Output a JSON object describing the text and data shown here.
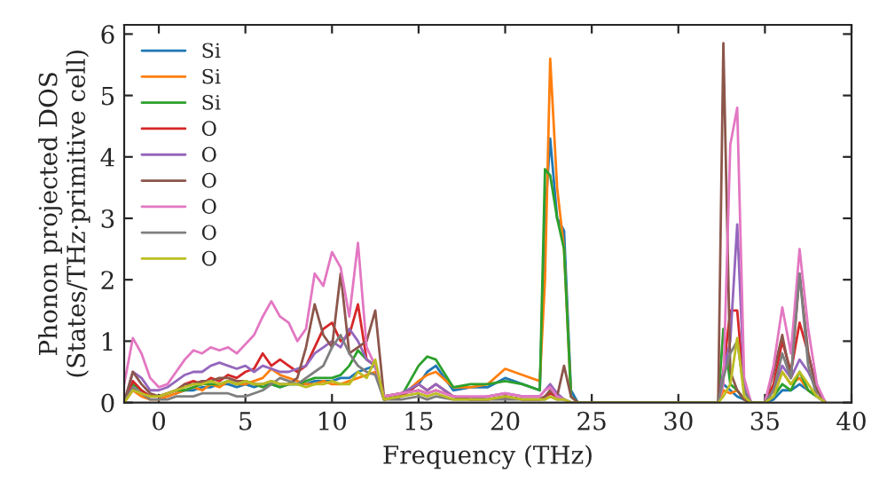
{
  "chart_data": {
    "type": "line",
    "xlabel": "Frequency (THz)",
    "ylabel": "Phonon projected DOS\n(States/THz·primitive cell)",
    "x": [
      -2,
      -1.5,
      -1,
      -0.5,
      0,
      0.5,
      1,
      1.5,
      2,
      2.5,
      3,
      3.5,
      4,
      4.5,
      5,
      5.5,
      6,
      6.5,
      7,
      7.5,
      8,
      8.5,
      9,
      9.5,
      10,
      10.5,
      11,
      11.5,
      12,
      12.5,
      13,
      14,
      15,
      15.5,
      16,
      17,
      18,
      19,
      20,
      21,
      22,
      22.3,
      22.6,
      23,
      23.4,
      23.8,
      24.2,
      25,
      30,
      32.3,
      32.6,
      33,
      33.4,
      33.8,
      34.2,
      35,
      35.5,
      36,
      36.5,
      37,
      37.5,
      38,
      38.5
    ],
    "series": [
      {
        "name": "Si",
        "color": "#1f77b4",
        "values": [
          null,
          null,
          null,
          null,
          null,
          null,
          0.15,
          0.2,
          0.2,
          0.25,
          0.25,
          0.3,
          0.3,
          0.25,
          0.3,
          0.25,
          0.3,
          0.3,
          0.25,
          0.3,
          0.3,
          0.3,
          0.35,
          0.35,
          0.35,
          0.4,
          0.4,
          0.5,
          0.55,
          0.6,
          0.05,
          0.1,
          0.3,
          0.5,
          0.6,
          0.2,
          0.25,
          0.25,
          0.4,
          0.3,
          0.2,
          3.0,
          4.3,
          3.0,
          2.8,
          0.2,
          0,
          0,
          0,
          0,
          0.3,
          0.2,
          0.1,
          0.05,
          0,
          0,
          0.05,
          0.2,
          0.2,
          0.3,
          0.2,
          0.1,
          0
        ]
      },
      {
        "name": "Si",
        "color": "#ff7f0e",
        "values": [
          0,
          0.2,
          0.1,
          0.05,
          0.05,
          0.1,
          0.15,
          0.2,
          0.25,
          0.2,
          0.3,
          0.25,
          0.35,
          0.3,
          0.3,
          0.35,
          0.4,
          0.55,
          0.45,
          0.4,
          0.35,
          0.3,
          0.3,
          0.35,
          0.3,
          0.3,
          0.35,
          0.4,
          0.45,
          0.5,
          0.05,
          0.1,
          0.35,
          0.45,
          0.5,
          0.25,
          0.25,
          0.3,
          0.55,
          0.45,
          0.35,
          2.0,
          5.6,
          3.5,
          2.5,
          0.1,
          0,
          0,
          0,
          0,
          0.2,
          0.15,
          0.2,
          0.05,
          0,
          0,
          0.1,
          0.5,
          0.3,
          0.4,
          0.2,
          0.1,
          0
        ]
      },
      {
        "name": "Si",
        "color": "#2ca02c",
        "values": [
          0,
          0.3,
          0.2,
          0.1,
          0.1,
          0.15,
          0.2,
          0.2,
          0.25,
          0.3,
          0.3,
          0.3,
          0.35,
          0.3,
          0.35,
          0.3,
          0.25,
          0.3,
          0.25,
          0.3,
          0.3,
          0.35,
          0.4,
          0.4,
          0.4,
          0.45,
          0.6,
          0.85,
          0.7,
          0.6,
          0.05,
          0.1,
          0.6,
          0.75,
          0.7,
          0.25,
          0.3,
          0.3,
          0.35,
          0.3,
          0.2,
          3.8,
          3.7,
          3.0,
          2.5,
          0.1,
          0,
          0,
          0,
          0,
          1.2,
          0.3,
          0.2,
          0.05,
          0,
          0,
          0.1,
          0.3,
          0.2,
          0.5,
          0.2,
          0.1,
          0
        ]
      },
      {
        "name": "O",
        "color": "#d62728",
        "values": [
          0,
          0.35,
          0.2,
          0.1,
          0.1,
          0.15,
          0.2,
          0.3,
          0.35,
          0.3,
          0.4,
          0.35,
          0.45,
          0.4,
          0.5,
          0.55,
          0.8,
          0.6,
          0.7,
          0.6,
          0.5,
          0.6,
          0.9,
          1.2,
          1.3,
          1.0,
          1.1,
          1.6,
          0.7,
          0.6,
          0.05,
          0.1,
          0.3,
          0.2,
          0.3,
          0.1,
          0.05,
          0.05,
          0.1,
          0.05,
          0.05,
          0.1,
          0.15,
          0.1,
          0.05,
          0,
          0,
          0,
          0,
          0,
          0.5,
          1.5,
          1.5,
          0.2,
          0,
          0,
          0.3,
          1.0,
          0.5,
          1.3,
          0.8,
          0.2,
          0
        ]
      },
      {
        "name": "O",
        "color": "#9467bd",
        "values": [
          0,
          0.5,
          0.4,
          0.2,
          0.2,
          0.25,
          0.35,
          0.45,
          0.5,
          0.5,
          0.6,
          0.65,
          0.6,
          0.55,
          0.6,
          0.5,
          0.6,
          0.55,
          0.5,
          0.5,
          0.55,
          0.6,
          0.8,
          0.9,
          1.0,
          0.9,
          1.2,
          1.0,
          0.7,
          0.6,
          0.1,
          0.15,
          0.3,
          0.2,
          0.3,
          0.1,
          0.05,
          0.1,
          0.15,
          0.1,
          0.1,
          0.2,
          0.3,
          0.15,
          0.05,
          0,
          0,
          0,
          0,
          0,
          0.5,
          1.0,
          2.9,
          0.3,
          0,
          0,
          0.2,
          0.6,
          0.4,
          0.7,
          0.5,
          0.2,
          0
        ]
      },
      {
        "name": "O",
        "color": "#8c564b",
        "values": [
          0,
          0.5,
          0.3,
          0.15,
          0.1,
          0.15,
          0.2,
          0.3,
          0.3,
          0.35,
          0.35,
          0.4,
          0.4,
          0.35,
          0.35,
          0.3,
          0.3,
          0.35,
          0.3,
          0.3,
          0.4,
          0.9,
          1.6,
          1.1,
          0.9,
          2.1,
          0.8,
          0.9,
          1.0,
          1.5,
          0.1,
          0.15,
          0.2,
          0.15,
          0.2,
          0.1,
          0.05,
          0.05,
          0.1,
          0.05,
          0.05,
          0.1,
          0.2,
          0.1,
          0.6,
          0.1,
          0,
          0,
          0,
          0,
          5.85,
          0.5,
          0.2,
          0.05,
          0,
          0,
          0.5,
          1.1,
          0.4,
          2.1,
          0.8,
          0.2,
          0
        ]
      },
      {
        "name": "O",
        "color": "#e377c2",
        "values": [
          0.3,
          1.05,
          0.8,
          0.4,
          0.25,
          0.3,
          0.5,
          0.7,
          0.85,
          0.8,
          0.9,
          0.85,
          0.9,
          0.8,
          0.95,
          1.1,
          1.4,
          1.65,
          1.4,
          1.3,
          1.0,
          1.2,
          2.1,
          1.9,
          2.45,
          2.2,
          1.4,
          2.6,
          0.9,
          0.6,
          0.1,
          0.15,
          0.2,
          0.15,
          0.2,
          0.1,
          0.1,
          0.1,
          0.15,
          0.1,
          0.1,
          0.2,
          0.25,
          0.1,
          0.05,
          0,
          0,
          0,
          0,
          0,
          0.3,
          4.2,
          4.8,
          0.4,
          0,
          0,
          0.6,
          1.55,
          0.8,
          2.5,
          1.2,
          0.3,
          0
        ]
      },
      {
        "name": "O",
        "color": "#7f7f7f",
        "values": [
          0,
          0.25,
          0.15,
          0.05,
          0.05,
          0.05,
          0.1,
          0.1,
          0.1,
          0.15,
          0.15,
          0.15,
          0.15,
          0.1,
          0.1,
          0.15,
          0.2,
          0.3,
          0.4,
          0.35,
          0.3,
          0.4,
          0.5,
          0.6,
          0.9,
          1.1,
          0.8,
          0.6,
          0.5,
          0.45,
          0.05,
          0.05,
          0.1,
          0.05,
          0.1,
          0.05,
          0.05,
          0.05,
          0.05,
          0.05,
          0.05,
          0.05,
          0.1,
          0.05,
          0.05,
          0,
          0,
          0,
          0,
          0,
          0.4,
          0.8,
          1.0,
          0.2,
          0,
          0,
          0.2,
          0.8,
          0.4,
          2.1,
          0.6,
          0.1,
          0
        ]
      },
      {
        "name": "O",
        "color": "#bcbd22",
        "values": [
          0,
          0.2,
          0.15,
          0.1,
          0.1,
          0.15,
          0.2,
          0.25,
          0.3,
          0.3,
          0.35,
          0.3,
          0.35,
          0.3,
          0.35,
          0.3,
          0.3,
          0.35,
          0.3,
          0.3,
          0.3,
          0.25,
          0.3,
          0.3,
          0.35,
          0.3,
          0.3,
          0.5,
          0.4,
          0.7,
          0.05,
          0.1,
          0.15,
          0.1,
          0.15,
          0.05,
          0.05,
          0.05,
          0.1,
          0.05,
          0.05,
          0.05,
          0.1,
          0.05,
          0.05,
          0,
          0,
          0,
          0,
          0,
          0.1,
          0.3,
          1.05,
          0.1,
          0,
          0,
          0.1,
          0.5,
          0.3,
          0.5,
          0.3,
          0.1,
          0
        ]
      }
    ],
    "xlim": [
      -2,
      40
    ],
    "xticks": [
      0,
      5,
      10,
      15,
      20,
      25,
      30,
      35,
      40
    ],
    "ylim": [
      0,
      6.15
    ],
    "yticks": [
      0,
      1,
      2,
      3,
      4,
      5,
      6
    ],
    "grid": false,
    "legend": "top left",
    "line_style": "solid",
    "marker": "none"
  }
}
